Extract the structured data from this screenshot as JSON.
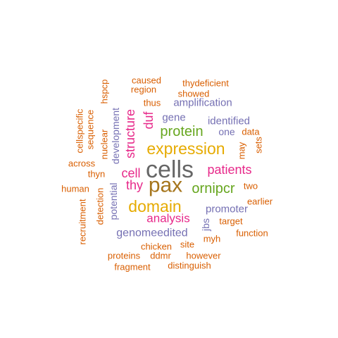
{
  "palette": {
    "orange": "#d95f02",
    "purple": "#7570b3",
    "magenta": "#e7298a",
    "green": "#66a61e",
    "gold": "#e6ab02",
    "brown": "#a6761d",
    "gray": "#666666"
  },
  "words": [
    {
      "text": "cells",
      "color": "gray"
    },
    {
      "text": "pax",
      "color": "brown"
    },
    {
      "text": "expression",
      "color": "gold"
    },
    {
      "text": "domain",
      "color": "gold"
    },
    {
      "text": "protein",
      "color": "green"
    },
    {
      "text": "ornipcr",
      "color": "green"
    },
    {
      "text": "patients",
      "color": "magenta"
    },
    {
      "text": "analysis",
      "color": "magenta"
    },
    {
      "text": "structure",
      "color": "magenta"
    },
    {
      "text": "cell",
      "color": "magenta"
    },
    {
      "text": "thy",
      "color": "magenta"
    },
    {
      "text": "duf",
      "color": "magenta"
    },
    {
      "text": "genomeedited",
      "color": "purple"
    },
    {
      "text": "promoter",
      "color": "purple"
    },
    {
      "text": "amplification",
      "color": "purple"
    },
    {
      "text": "identified",
      "color": "purple"
    },
    {
      "text": "development",
      "color": "purple"
    },
    {
      "text": "potential",
      "color": "purple"
    },
    {
      "text": "gene",
      "color": "purple"
    },
    {
      "text": "one",
      "color": "purple"
    },
    {
      "text": "jbs",
      "color": "purple"
    },
    {
      "text": "caused",
      "color": "orange"
    },
    {
      "text": "region",
      "color": "orange"
    },
    {
      "text": "thydeficient",
      "color": "orange"
    },
    {
      "text": "showed",
      "color": "orange"
    },
    {
      "text": "thus",
      "color": "orange"
    },
    {
      "text": "hspcp",
      "color": "orange"
    },
    {
      "text": "cellspecific",
      "color": "orange"
    },
    {
      "text": "sequence",
      "color": "orange"
    },
    {
      "text": "nuclear",
      "color": "orange"
    },
    {
      "text": "across",
      "color": "orange"
    },
    {
      "text": "thyn",
      "color": "orange"
    },
    {
      "text": "human",
      "color": "orange"
    },
    {
      "text": "detection",
      "color": "orange"
    },
    {
      "text": "recruitment",
      "color": "orange"
    },
    {
      "text": "data",
      "color": "orange"
    },
    {
      "text": "may",
      "color": "orange"
    },
    {
      "text": "sets",
      "color": "orange"
    },
    {
      "text": "two",
      "color": "orange"
    },
    {
      "text": "earlier",
      "color": "orange"
    },
    {
      "text": "target",
      "color": "orange"
    },
    {
      "text": "function",
      "color": "orange"
    },
    {
      "text": "myh",
      "color": "orange"
    },
    {
      "text": "site",
      "color": "orange"
    },
    {
      "text": "chicken",
      "color": "orange"
    },
    {
      "text": "proteins",
      "color": "orange"
    },
    {
      "text": "ddmr",
      "color": "orange"
    },
    {
      "text": "however",
      "color": "orange"
    },
    {
      "text": "fragment",
      "color": "orange"
    },
    {
      "text": "distinguish",
      "color": "orange"
    }
  ]
}
